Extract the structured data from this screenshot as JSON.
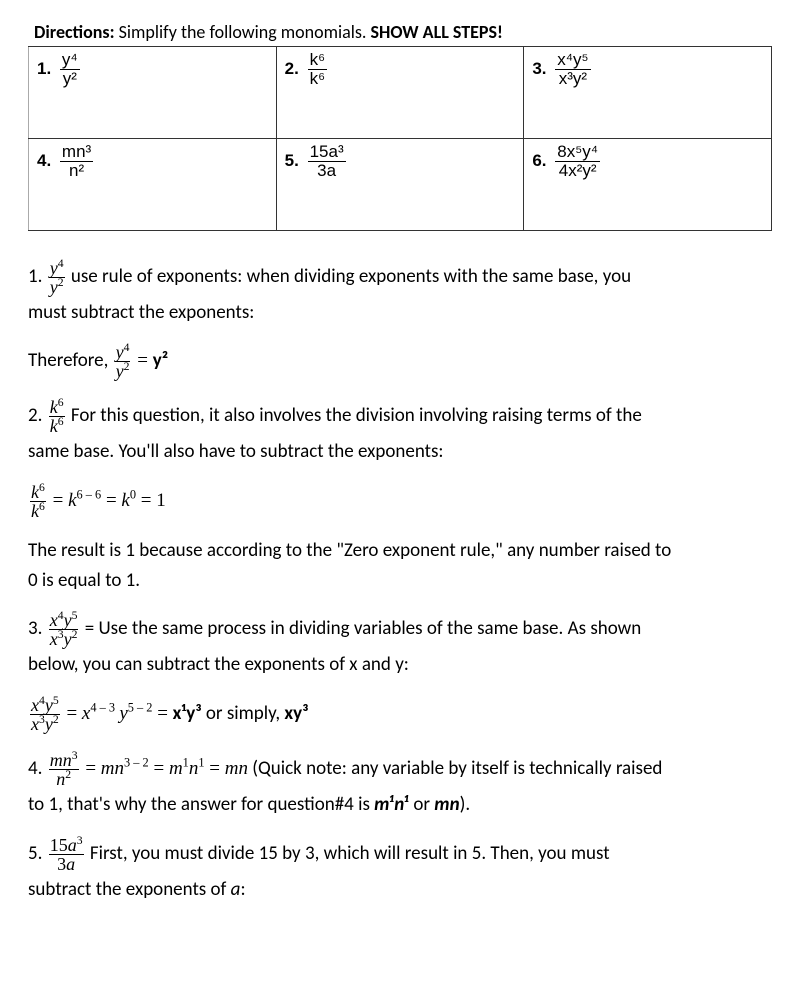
{
  "directions": {
    "label": "Directions:",
    "text": " Simplify the following monomials.  ",
    "show": "SHOW ALL STEPS!"
  },
  "grid": {
    "c1": {
      "num": "1.",
      "top": "y⁴",
      "bot": "y²"
    },
    "c2": {
      "num": "2.",
      "top": "k⁶",
      "bot": "k⁶"
    },
    "c3": {
      "num": "3.",
      "top": "x⁴y⁵",
      "bot": "x³y²"
    },
    "c4": {
      "num": "4.",
      "top": "mn³",
      "bot": "n²"
    },
    "c5": {
      "num": "5.",
      "top": "15a³",
      "bot": "3a"
    },
    "c6": {
      "num": "6.",
      "top": "8x⁵y⁴",
      "bot": "4x²y²"
    }
  },
  "sol1": {
    "num": "1.  ",
    "frac_top": "y",
    "frac_top_sup": "4",
    "frac_bot": "y",
    "frac_bot_sup": "2",
    "text_a": " use rule of exponents: when dividing exponents with the same base, you",
    "text_b": "must subtract the exponents:",
    "therefore": "Therefore, ",
    "res": " = y²",
    "res_bold": "y²"
  },
  "sol2": {
    "num": "2.  ",
    "frac_top": "k",
    "frac_top_sup": "6",
    "frac_bot": "k",
    "frac_bot_sup": "6",
    "text_a": " For this question, it also involves the division involving raising terms of the",
    "text_b": "same base. You'll also have to subtract the exponents:",
    "eq": " = k⁶⁻⁶ = k⁰ = 1",
    "eq_k": "k",
    "eq_exp1": "6 – 6",
    "eq_k2": "k",
    "eq_exp2": "0",
    "eq_eq": " = ",
    "eq_one": "1",
    "text_c": "The result is 1 because according to the \"Zero exponent rule,\" any number raised to",
    "text_d": "0 is equal to 1."
  },
  "sol3": {
    "num": "3.  ",
    "frac_top_a": "x",
    "frac_top_a_sup": "4",
    "frac_top_b": "y",
    "frac_top_b_sup": "5",
    "frac_bot_a": "x",
    "frac_bot_a_sup": "3",
    "frac_bot_b": "y",
    "frac_bot_b_sup": "2",
    "text_a": " = Use the same process in dividing variables of the same base. As shown",
    "text_b": "below, you can subtract the exponents of x and y:",
    "eq_pre": " = ",
    "eq_x": "x",
    "eq_x_sup": "4 – 3",
    "eq_sp": " ",
    "eq_y": "y",
    "eq_y_sup": "5 – 2",
    "eq_mid": " =  ",
    "eq_res": "x¹y³",
    "eq_or": " or simply, ",
    "eq_res2": "xy³"
  },
  "sol4": {
    "num": "4.  ",
    "frac_top_a": "mn",
    "frac_top_sup": "3",
    "frac_bot_a": "n",
    "frac_bot_sup": "2",
    "eq_pre": " = ",
    "eq_mn": "mn",
    "eq_mn_sup": "3 – 2",
    "eq_mid1": " = ",
    "eq_m": "m",
    "eq_m_sup": "1",
    "eq_n": "n",
    "eq_n_sup": "1",
    "eq_mid2": " = ",
    "eq_res": "mn",
    "text_a": "  (Quick note: any variable by itself is technically raised",
    "text_b": "to 1, that's why the answer for question#4 is ",
    "bold1": "m¹n¹",
    "or": " or ",
    "bold2": "mn",
    "paren": ")."
  },
  "sol5": {
    "num": "5.  ",
    "frac_top": "15a",
    "frac_top_sup": "3",
    "frac_bot": "3a",
    "text_a": " First, you must divide 15 by 3, which will result in 5. Then, you must",
    "text_b": "subtract the exponents of ",
    "a": "a",
    "colon": ":"
  }
}
